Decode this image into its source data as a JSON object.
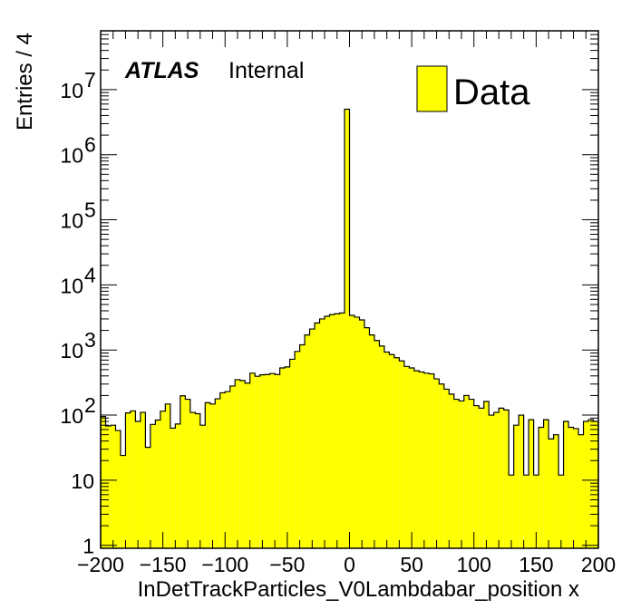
{
  "chart_data": {
    "type": "histogram",
    "xlabel": "InDetTrackParticles_V0Lambdabar_position x",
    "ylabel": "Entries / 4",
    "xlim": [
      -200,
      200
    ],
    "ylim": [
      0.9,
      80000000
    ],
    "yscale": "log",
    "bin_width": 4,
    "x_ticks": [
      -200,
      -150,
      -100,
      -50,
      0,
      50,
      100,
      150,
      200
    ],
    "x_tick_labels": [
      "−200",
      "−150",
      "−100",
      "−50",
      "0",
      "50",
      "100",
      "150",
      "200"
    ],
    "y_ticks": [
      1,
      10,
      100,
      1000,
      10000,
      100000,
      1000000,
      10000000
    ],
    "y_tick_labels": [
      {
        "base": "1",
        "exp": ""
      },
      {
        "base": "10",
        "exp": ""
      },
      {
        "base": "10",
        "exp": "2"
      },
      {
        "base": "10",
        "exp": "3"
      },
      {
        "base": "10",
        "exp": "4"
      },
      {
        "base": "10",
        "exp": "5"
      },
      {
        "base": "10",
        "exp": "6"
      },
      {
        "base": "10",
        "exp": "7"
      }
    ],
    "series": [
      {
        "name": "Data",
        "color": "#ffff00",
        "edge": "#000000",
        "x_start": -200,
        "values": [
          95,
          68,
          70,
          58,
          24,
          108,
          116,
          80,
          110,
          32,
          72,
          84,
          115,
          148,
          63,
          73,
          198,
          175,
          110,
          105,
          70,
          155,
          148,
          178,
          220,
          230,
          280,
          350,
          340,
          310,
          440,
          395,
          415,
          420,
          435,
          420,
          530,
          550,
          720,
          950,
          1200,
          1700,
          2100,
          2600,
          3000,
          3300,
          3500,
          3600,
          3700,
          5000000,
          3400,
          3200,
          2900,
          2200,
          1700,
          1400,
          1150,
          930,
          850,
          760,
          680,
          560,
          530,
          480,
          460,
          440,
          430,
          360,
          300,
          250,
          210,
          175,
          165,
          200,
          175,
          140,
          128,
          162,
          100,
          110,
          128,
          120,
          12,
          70,
          100,
          12,
          85,
          12,
          65,
          85,
          43,
          50,
          12,
          80,
          65,
          62,
          50,
          80,
          85,
          80
        ]
      }
    ],
    "atlas_label": "ATLAS",
    "atlas_status": "Internal",
    "legend_position": "top-right"
  }
}
